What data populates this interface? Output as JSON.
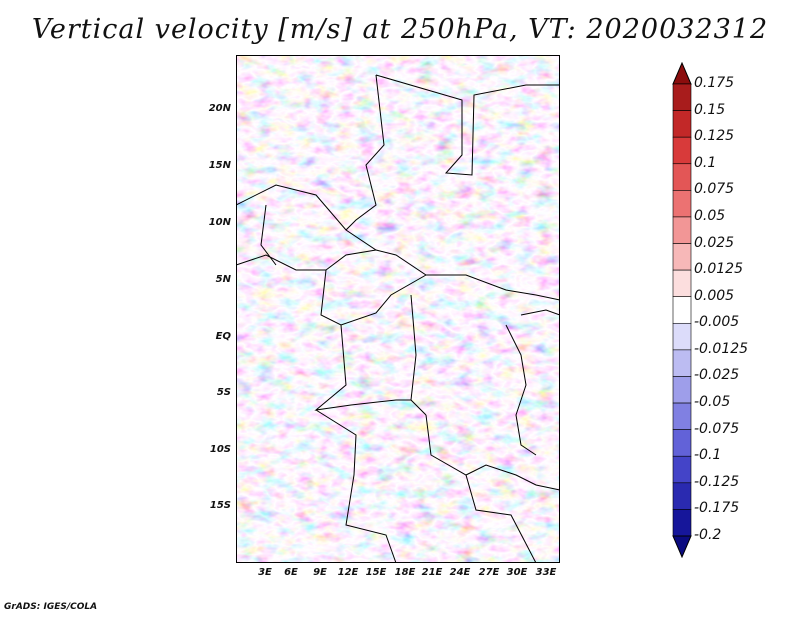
{
  "title": "Vertical velocity [m/s] at 250hPa, VT: 2020032312",
  "footer": "GrADS: IGES/COLA",
  "lat_labels": [
    "20N",
    "15N",
    "10N",
    "5N",
    "EQ",
    "5S",
    "10S",
    "15S"
  ],
  "lon_labels": [
    "3E",
    "6E",
    "9E",
    "12E",
    "15E",
    "18E",
    "21E",
    "24E",
    "27E",
    "30E",
    "33E"
  ],
  "colorbar": {
    "labels": [
      "0.175",
      "0.15",
      "0.125",
      "0.1",
      "0.075",
      "0.05",
      "0.025",
      "0.0125",
      "0.005",
      "-0.005",
      "-0.0125",
      "-0.025",
      "-0.05",
      "-0.075",
      "-0.1",
      "-0.125",
      "-0.175",
      "-0.2"
    ],
    "colors": [
      "#8b0d0d",
      "#a81c1c",
      "#c22828",
      "#d83a3a",
      "#e35656",
      "#ec7272",
      "#f29696",
      "#f7b8b8",
      "#fcdede",
      "#ffffff",
      "#dcdcfa",
      "#bcbcf2",
      "#9e9eea",
      "#8080e2",
      "#6262d8",
      "#4444c8",
      "#2a2ab0",
      "#16169a",
      "#0b0b80"
    ]
  }
}
